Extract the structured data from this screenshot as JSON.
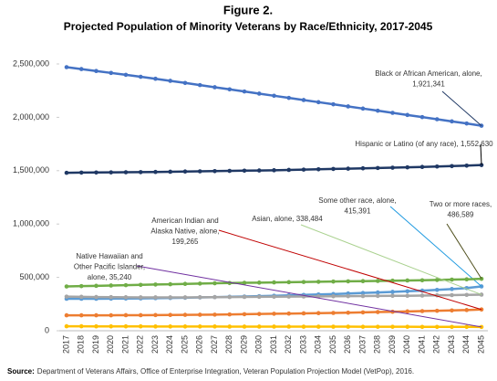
{
  "chart_data": {
    "type": "line",
    "figure_label": "Figure 2.",
    "title": "Projected Population of Minority Veterans by Race/Ethnicity, 2017-2045",
    "categories": [
      "2017",
      "2018",
      "2019",
      "2020",
      "2021",
      "2022",
      "2023",
      "2024",
      "2025",
      "2026",
      "2027",
      "2028",
      "2029",
      "2030",
      "2031",
      "2032",
      "2033",
      "2034",
      "2035",
      "2036",
      "2037",
      "2038",
      "2039",
      "2040",
      "2041",
      "2042",
      "2043",
      "2044",
      "2045"
    ],
    "ylim": [
      0,
      2500000
    ],
    "yticks": [
      0,
      {
        "value": 500000,
        "label": "500,000"
      },
      {
        "value": 1000000,
        "label": "1,000,000"
      },
      {
        "value": 1500000,
        "label": "1,500,000"
      },
      {
        "value": 2000000,
        "label": "2,000,000"
      },
      {
        "value": 2500000,
        "label": "2,500,000"
      }
    ],
    "grid": false,
    "series": [
      {
        "annotation": [
          "Black or African American, alone,",
          "1,921,341"
        ],
        "color": "#4472c4",
        "values": [
          2470000,
          2452000,
          2434000,
          2416000,
          2398000,
          2380000,
          2361000,
          2342000,
          2322000,
          2302000,
          2282000,
          2262000,
          2242000,
          2222000,
          2202000,
          2182000,
          2162000,
          2142000,
          2122000,
          2102000,
          2082000,
          2062000,
          2042000,
          2022000,
          2002000,
          1982000,
          1962000,
          1942000,
          1921341
        ]
      },
      {
        "annotation": [
          "Hispanic or Latino (of any race), 1,552,630"
        ],
        "color": "#1f3864",
        "values": [
          1480000,
          1482000,
          1483000,
          1484000,
          1485000,
          1486000,
          1488000,
          1490000,
          1492000,
          1494000,
          1496000,
          1498000,
          1500000,
          1502000,
          1504000,
          1507000,
          1510000,
          1513000,
          1516000,
          1519000,
          1522000,
          1525000,
          1528000,
          1531000,
          1535000,
          1539000,
          1543000,
          1547000,
          1552630
        ]
      },
      {
        "annotation": [
          "Some other race, alone,",
          "415,391"
        ],
        "color": "#5b9bd5",
        "values": [
          300000,
          300000,
          300000,
          301000,
          302000,
          303000,
          305000,
          307000,
          309000,
          312000,
          315000,
          318000,
          321000,
          324000,
          328000,
          332000,
          336000,
          340000,
          344000,
          349000,
          354000,
          359000,
          364000,
          370000,
          376000,
          383000,
          391000,
          400000,
          415391
        ]
      },
      {
        "annotation": [
          "Two or more races,",
          "486,589"
        ],
        "color": "#70ad47",
        "values": [
          415000,
          418000,
          421000,
          424000,
          427000,
          430000,
          433000,
          436000,
          439000,
          442000,
          445000,
          447000,
          449000,
          451000,
          453000,
          455000,
          457000,
          459000,
          461000,
          463000,
          465000,
          467000,
          469000,
          471000,
          473000,
          476000,
          479000,
          482000,
          486589
        ]
      },
      {
        "annotation": [
          "Asian, alone, 338,484"
        ],
        "color": "#a5a5a5",
        "values": [
          320000,
          318000,
          316000,
          315000,
          314000,
          313000,
          313000,
          313000,
          313000,
          314000,
          315000,
          316000,
          317000,
          318000,
          319000,
          320000,
          321000,
          322000,
          323000,
          324000,
          325000,
          326000,
          327000,
          328000,
          330000,
          332000,
          334000,
          336000,
          338484
        ]
      },
      {
        "annotation": [
          "American Indian and",
          "Alaska Native, alone,",
          "199,265"
        ],
        "color": "#ed7d31",
        "values": [
          145000,
          145000,
          145000,
          145000,
          146000,
          146000,
          147000,
          148000,
          149000,
          150000,
          151000,
          153000,
          155000,
          157000,
          159000,
          161000,
          163000,
          165000,
          167000,
          169000,
          172000,
          175000,
          178000,
          181000,
          184000,
          187000,
          190000,
          194000,
          199265
        ]
      },
      {
        "annotation": [
          "Native Hawaiian and",
          "Other Pacific Islander,",
          "alone, 35,240"
        ],
        "color": "#ffc000",
        "values": [
          42000,
          42000,
          41000,
          41000,
          41000,
          41000,
          40000,
          40000,
          40000,
          40000,
          40000,
          39000,
          39000,
          39000,
          39000,
          39000,
          38000,
          38000,
          38000,
          38000,
          37000,
          37000,
          37000,
          37000,
          36000,
          36000,
          36000,
          36000,
          35240
        ]
      }
    ],
    "source_label": "Source:",
    "source": "Department of Veterans Affairs, Office of Enterprise Integration, Veteran Population Projection Model (VetPop), 2016."
  }
}
